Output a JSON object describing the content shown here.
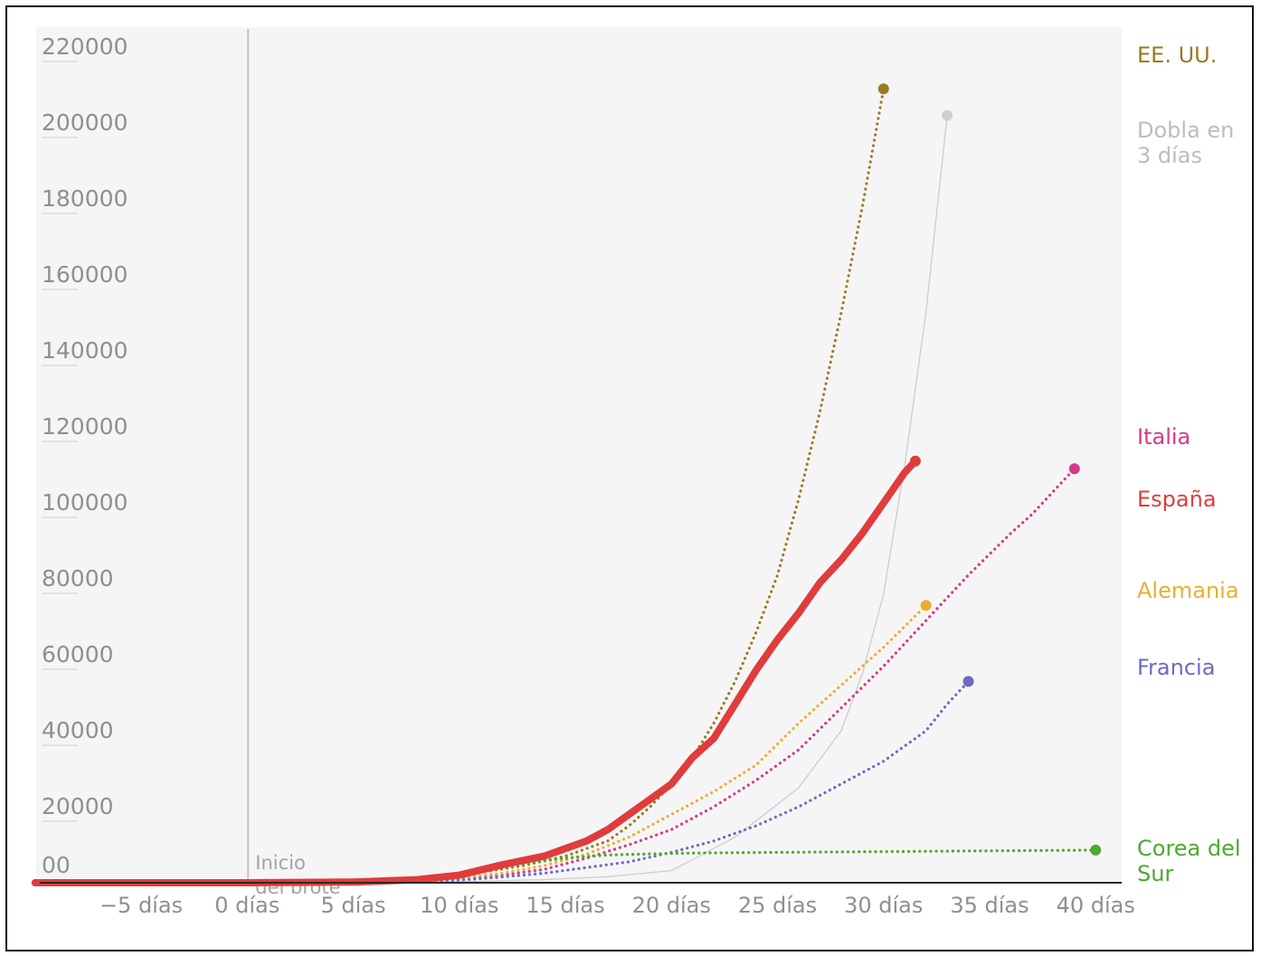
{
  "chart_data": {
    "type": "line",
    "title": "",
    "xlabel": "",
    "ylabel": "",
    "xlim": [
      -10,
      41
    ],
    "ylim": [
      0,
      223000
    ],
    "y_ticks": [
      {
        "value": 220000,
        "label": "220000"
      },
      {
        "value": 200000,
        "label": "200000"
      },
      {
        "value": 180000,
        "label": "180000"
      },
      {
        "value": 160000,
        "label": "160000"
      },
      {
        "value": 140000,
        "label": "140000"
      },
      {
        "value": 120000,
        "label": "120000"
      },
      {
        "value": 100000,
        "label": "100000"
      },
      {
        "value": 80000,
        "label": "80000"
      },
      {
        "value": 60000,
        "label": "60000"
      },
      {
        "value": 40000,
        "label": "40000"
      },
      {
        "value": 20000,
        "label": "20000"
      },
      {
        "value": 0,
        "label": "00"
      }
    ],
    "x_ticks": [
      {
        "value": -5,
        "label": "−5 días"
      },
      {
        "value": 0,
        "label": "0 días"
      },
      {
        "value": 5,
        "label": "5 días"
      },
      {
        "value": 10,
        "label": "10 días"
      },
      {
        "value": 15,
        "label": "15 días"
      },
      {
        "value": 20,
        "label": "20 días"
      },
      {
        "value": 25,
        "label": "25 días"
      },
      {
        "value": 30,
        "label": "30 días"
      },
      {
        "value": 35,
        "label": "35 días"
      },
      {
        "value": 40,
        "label": "40 días"
      }
    ],
    "annotation": {
      "x": 0,
      "lines": [
        "Inicio",
        "del brote"
      ]
    },
    "grid": false,
    "legend": "right, end labels",
    "series": [
      {
        "name": "EE. UU.",
        "label_lines": [
          "EE. UU."
        ],
        "color": "#9c7a22",
        "style": "dotted",
        "x": [
          5,
          7,
          9,
          11,
          13,
          15,
          17,
          18,
          19,
          20,
          21,
          22,
          23,
          24,
          25,
          26,
          27,
          28,
          29,
          30
        ],
        "y": [
          100,
          500,
          1500,
          2700,
          4500,
          7000,
          11000,
          15000,
          20000,
          26000,
          33000,
          42000,
          53000,
          66000,
          81000,
          101000,
          124000,
          150000,
          178000,
          209000
        ]
      },
      {
        "name": "Dobla en 3 días",
        "label_lines": [
          "Dobla en",
          "3 días"
        ],
        "color": "#cfcfcf",
        "style": "solid-thin",
        "x": [
          5,
          8,
          11,
          14,
          17,
          20,
          23,
          26,
          28,
          29,
          30,
          31,
          32,
          33
        ],
        "y": [
          50,
          200,
          400,
          800,
          1600,
          3200,
          12000,
          25000,
          40000,
          55000,
          76000,
          110000,
          150000,
          202000
        ]
      },
      {
        "name": "Italia",
        "label_lines": [
          "Italia"
        ],
        "color": "#d43a86",
        "style": "dotted",
        "x": [
          5,
          8,
          10,
          12,
          14,
          16,
          18,
          20,
          22,
          24,
          26,
          28,
          30,
          32,
          34,
          36,
          37,
          39
        ],
        "y": [
          100,
          400,
          1000,
          2000,
          3500,
          6500,
          10000,
          14000,
          20000,
          27000,
          35000,
          46000,
          57000,
          69000,
          81000,
          92000,
          97000,
          109000
        ]
      },
      {
        "name": "España",
        "label_lines": [
          "España"
        ],
        "color": "#e03c3c",
        "style": "solid-thick",
        "x": [
          -10,
          -5,
          0,
          5,
          8,
          10,
          12,
          14,
          15,
          16,
          17,
          18,
          19,
          20,
          21,
          22,
          23,
          24,
          25,
          26,
          27,
          28,
          29,
          30,
          31,
          31.5
        ],
        "y": [
          0,
          0,
          0,
          200,
          800,
          2000,
          4700,
          7000,
          9000,
          11000,
          14000,
          18000,
          22000,
          26000,
          33000,
          38000,
          47000,
          56000,
          64000,
          71000,
          79000,
          85000,
          92000,
          100000,
          108000,
          111000
        ]
      },
      {
        "name": "Alemania",
        "label_lines": [
          "Alemania"
        ],
        "color": "#e8b030",
        "style": "dotted",
        "x": [
          5,
          8,
          10,
          12,
          14,
          16,
          18,
          20,
          22,
          24,
          26,
          28,
          30,
          32
        ],
        "y": [
          100,
          500,
          1200,
          2500,
          4500,
          7500,
          12000,
          18000,
          24000,
          31000,
          42000,
          52000,
          62000,
          73000
        ]
      },
      {
        "name": "Francia",
        "label_lines": [
          "Francia"
        ],
        "color": "#6b6bc2",
        "style": "dotted",
        "x": [
          5,
          8,
          10,
          12,
          14,
          16,
          18,
          20,
          22,
          24,
          26,
          28,
          30,
          32,
          33,
          34
        ],
        "y": [
          100,
          300,
          700,
          1500,
          2500,
          4000,
          5500,
          8000,
          11000,
          15000,
          20000,
          26000,
          32000,
          40000,
          47000,
          53000
        ]
      },
      {
        "name": "Corea del Sur",
        "label_lines": [
          "Corea del",
          "Sur"
        ],
        "color": "#4caa2c",
        "style": "dotted",
        "x": [
          5,
          7,
          9,
          11,
          13,
          15,
          17,
          19,
          21,
          25,
          30,
          35,
          40
        ],
        "y": [
          100,
          400,
          1200,
          3000,
          5000,
          6500,
          7300,
          7600,
          7800,
          8000,
          8200,
          8400,
          8600
        ]
      }
    ]
  }
}
